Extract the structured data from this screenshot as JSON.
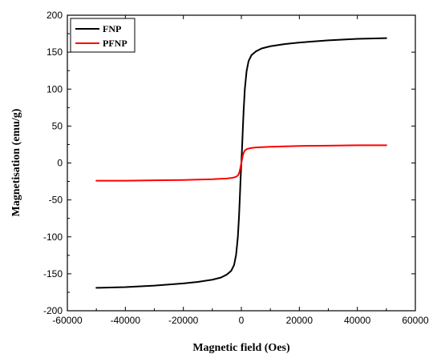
{
  "chart_data": {
    "type": "line",
    "xlabel": "Magnetic field (Oes)",
    "ylabel": "Magnetisation (emu/g)",
    "xlim": [
      -60000,
      60000
    ],
    "ylim": [
      -200,
      200
    ],
    "xticks": [
      -60000,
      -40000,
      -20000,
      0,
      20000,
      40000,
      60000
    ],
    "yticks": [
      -200,
      -150,
      -100,
      -50,
      0,
      50,
      100,
      150,
      200
    ],
    "grid": false,
    "legend_position": "top-left",
    "series": [
      {
        "name": "FNP",
        "color": "#000000",
        "x": [
          -50000,
          -40000,
          -30000,
          -20000,
          -15000,
          -10000,
          -7000,
          -5000,
          -3500,
          -2500,
          -1800,
          -1200,
          -800,
          -500,
          -300,
          -150,
          0,
          150,
          300,
          500,
          800,
          1200,
          1800,
          2500,
          3500,
          5000,
          7000,
          10000,
          15000,
          20000,
          30000,
          40000,
          50000
        ],
        "y": [
          -169,
          -168,
          -166,
          -163,
          -161,
          -158,
          -155,
          -151,
          -146,
          -138,
          -124,
          -100,
          -72,
          -45,
          -25,
          -12,
          0,
          12,
          25,
          45,
          72,
          100,
          124,
          138,
          146,
          151,
          155,
          158,
          161,
          163,
          166,
          168,
          169
        ]
      },
      {
        "name": "PFNP",
        "color": "#ff0000",
        "x": [
          -50000,
          -40000,
          -30000,
          -20000,
          -10000,
          -5000,
          -3000,
          -2000,
          -1200,
          -700,
          -400,
          -200,
          0,
          200,
          400,
          700,
          1200,
          2000,
          3000,
          5000,
          10000,
          20000,
          30000,
          40000,
          50000
        ],
        "y": [
          -24,
          -24,
          -23.5,
          -23,
          -22,
          -21,
          -20,
          -19,
          -17,
          -13,
          -8,
          -4,
          0,
          4,
          8,
          13,
          17,
          19,
          20,
          21,
          22,
          23,
          23.5,
          24,
          24
        ]
      }
    ]
  }
}
